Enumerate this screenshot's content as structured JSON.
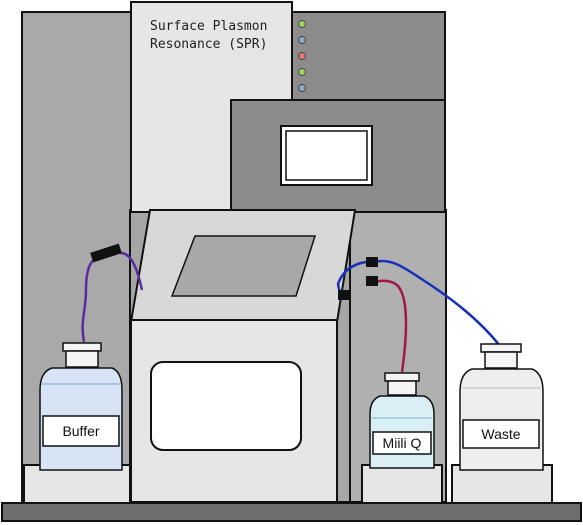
{
  "instrument": {
    "title_line1": "Surface Plasmon",
    "title_line2": "Resonance (SPR)",
    "indicator_lights": [
      "#9ccc65",
      "#8fa7c9",
      "#e57373",
      "#9ccc65",
      "#8fa7c9"
    ]
  },
  "bottles": {
    "buffer": {
      "label": "Buffer",
      "liquid_color": "#d6e4f5"
    },
    "milli_q": {
      "label": "Miili Q",
      "liquid_color": "#d9eef5"
    },
    "waste": {
      "label": "Waste",
      "liquid_color": "#eeeeee"
    }
  },
  "tubing": {
    "buffer_line_color": "#5a2ca0",
    "milli_q_line_color": "#a0184a",
    "waste_line_color": "#1630b8"
  },
  "colors": {
    "housing_dark": "#8c8c8c",
    "housing_mid": "#a9a9a9",
    "housing_light": "#e6e6e6",
    "base": "#6e6e6e"
  }
}
